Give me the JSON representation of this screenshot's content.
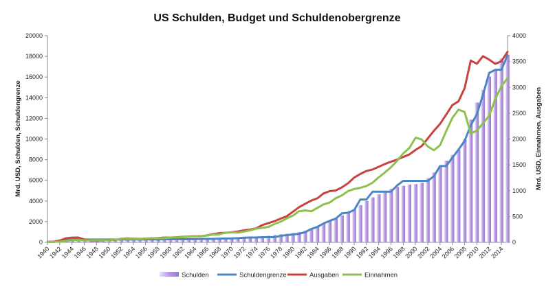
{
  "chart_data": {
    "type": "bar+line",
    "title": "US Schulden, Budget und Schuldenobergrenze",
    "ylabel_left": "Mrd. USD, Schulden, Schuldengrenze",
    "ylabel_right": "Mrd. USD, Einnahmen, Ausgaben",
    "ylim_left": [
      0,
      20000
    ],
    "ylim_right": [
      0,
      4000
    ],
    "yticks_left": [
      0,
      2000,
      4000,
      6000,
      8000,
      10000,
      12000,
      14000,
      16000,
      18000,
      20000
    ],
    "yticks_right": [
      0,
      500,
      1000,
      1500,
      2000,
      2500,
      3000,
      3500,
      4000
    ],
    "x_start": 1940,
    "x_end": 2015,
    "xtick_labels": [
      "1940",
      "1942",
      "1944",
      "1946",
      "1948",
      "1950",
      "1952",
      "1954",
      "1956",
      "1958",
      "1960",
      "1962",
      "1964",
      "1966",
      "1968",
      "1970",
      "1972",
      "1974",
      "1976",
      "1978",
      "1980",
      "1982",
      "1984",
      "1986",
      "1988",
      "1990",
      "1992",
      "1994",
      "1996",
      "1998",
      "2000",
      "2002",
      "2004",
      "2006",
      "2008",
      "2010",
      "2012",
      "2014"
    ],
    "legend_position": "bottom",
    "grid": false,
    "series": [
      {
        "name": "Schulden",
        "kind": "bar",
        "axis": "left",
        "color": "#a987d8",
        "values": [
          51,
          58,
          79,
          143,
          204,
          260,
          271,
          257,
          252,
          253,
          257,
          255,
          259,
          266,
          271,
          274,
          273,
          272,
          280,
          287,
          291,
          293,
          303,
          310,
          317,
          322,
          329,
          341,
          370,
          368,
          381,
          408,
          436,
          466,
          484,
          542,
          629,
          706,
          777,
          829,
          909,
          995,
          1137,
          1372,
          1565,
          1818,
          2121,
          2346,
          2601,
          2868,
          3206,
          3598,
          4002,
          4351,
          4643,
          4921,
          5181,
          5369,
          5478,
          5606,
          5629,
          5770,
          6198,
          6760,
          7355,
          7905,
          8451,
          8951,
          9986,
          11876,
          13529,
          14764,
          16051,
          16719,
          17794,
          18151
        ]
      },
      {
        "name": "Schuldengrenze",
        "kind": "line",
        "axis": "left",
        "color": "#4a86c5",
        "values": [
          45,
          49,
          125,
          210,
          300,
          300,
          275,
          275,
          275,
          275,
          275,
          275,
          275,
          275,
          275,
          275,
          280,
          285,
          285,
          290,
          295,
          298,
          300,
          300,
          309,
          324,
          328,
          330,
          358,
          377,
          380,
          400,
          450,
          465,
          465,
          495,
          495,
          495,
          627,
          700,
          752,
          830,
          985,
          1290,
          1490,
          1823,
          2079,
          2300,
          2800,
          2870,
          3122,
          4145,
          4145,
          4900,
          4900,
          4900,
          4900,
          5500,
          5950,
          5950,
          5950,
          5950,
          5950,
          6400,
          7384,
          7384,
          8184,
          8965,
          9815,
          11315,
          12394,
          14294,
          16394,
          16699,
          16699,
          18113
        ]
      },
      {
        "name": "Ausgaben",
        "kind": "line",
        "axis": "right",
        "color": "#c9433e",
        "values": [
          9.5,
          13.7,
          35.1,
          78.6,
          91.3,
          92.7,
          55.2,
          34.5,
          29.8,
          38.8,
          42.6,
          45.5,
          67.7,
          76.1,
          70.9,
          68.4,
          70.6,
          76.6,
          82.4,
          92.1,
          92.2,
          97.7,
          106.8,
          111.3,
          118.5,
          118.2,
          134.5,
          157.5,
          178.1,
          183.6,
          195.6,
          210.2,
          230.7,
          245.7,
          269.4,
          332.3,
          371.8,
          409.2,
          458.7,
          504.0,
          590.9,
          678.2,
          745.7,
          808.4,
          851.8,
          946.3,
          990.4,
          1004.0,
          1064.4,
          1143.7,
          1253.0,
          1324.2,
          1381.5,
          1409.4,
          1461.8,
          1515.7,
          1560.5,
          1601.1,
          1652.5,
          1701.8,
          1789.0,
          1862.8,
          2010.9,
          2159.9,
          2292.8,
          2472.0,
          2655.0,
          2728.7,
          2982.5,
          3517.7,
          3457.1,
          3603.1,
          3537.0,
          3454.6,
          3506.1,
          3688.3
        ]
      },
      {
        "name": "Einnahmen",
        "kind": "line",
        "axis": "right",
        "color": "#8cc14f",
        "values": [
          6.5,
          8.7,
          14.6,
          24.0,
          43.7,
          45.2,
          39.3,
          38.5,
          41.6,
          39.4,
          39.4,
          51.6,
          66.2,
          69.6,
          69.7,
          65.5,
          74.6,
          80.0,
          79.6,
          79.2,
          92.5,
          94.4,
          99.7,
          106.6,
          112.6,
          116.8,
          130.8,
          148.8,
          153.0,
          186.9,
          192.8,
          187.1,
          207.3,
          230.8,
          263.2,
          279.1,
          298.1,
          355.6,
          399.6,
          463.3,
          517.1,
          599.3,
          617.8,
          600.6,
          666.4,
          734.0,
          769.2,
          854.3,
          909.2,
          991.1,
          1032.0,
          1055.0,
          1091.2,
          1154.3,
          1258.6,
          1351.8,
          1453.1,
          1579.2,
          1721.7,
          1827.5,
          2025.2,
          1991.1,
          1853.1,
          1782.3,
          1880.1,
          2153.6,
          2406.9,
          2568.0,
          2524.0,
          2105.0,
          2162.7,
          2303.5,
          2450.0,
          2775.1,
          3021.5,
          3176.0
        ]
      }
    ]
  }
}
